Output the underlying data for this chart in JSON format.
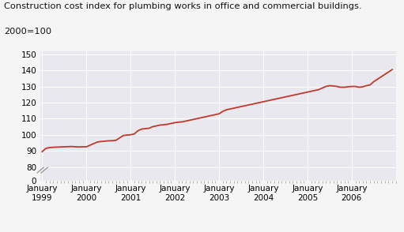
{
  "title_line1": "Construction cost index for plumbing works in office and commercial buildings.",
  "title_line2": "2000=100",
  "line_color": "#c0392b",
  "line_width": 1.3,
  "background_color": "#f5f5f5",
  "plot_bg_color": "#e8e8ee",
  "grid_color": "#ffffff",
  "yticks_main": [
    80,
    90,
    100,
    110,
    120,
    130,
    140,
    150
  ],
  "ytick_bottom": 0,
  "x_tick_labels": [
    "January\n1999",
    "January\n2000",
    "January\n2001",
    "January\n2002",
    "January\n2003",
    "January\n2004",
    "January\n2005",
    "January\n2006"
  ],
  "x_tick_positions": [
    1999,
    2000,
    2001,
    2002,
    2003,
    2004,
    2005,
    2006
  ],
  "data_points": [
    [
      1999,
      1,
      89.5
    ],
    [
      1999,
      2,
      91.5
    ],
    [
      1999,
      3,
      92.0
    ],
    [
      1999,
      4,
      92.2
    ],
    [
      1999,
      5,
      92.3
    ],
    [
      1999,
      6,
      92.4
    ],
    [
      1999,
      7,
      92.5
    ],
    [
      1999,
      8,
      92.6
    ],
    [
      1999,
      9,
      92.7
    ],
    [
      1999,
      10,
      92.5
    ],
    [
      1999,
      11,
      92.4
    ],
    [
      1999,
      12,
      92.5
    ],
    [
      2000,
      1,
      92.5
    ],
    [
      2000,
      2,
      93.5
    ],
    [
      2000,
      3,
      94.5
    ],
    [
      2000,
      4,
      95.5
    ],
    [
      2000,
      5,
      95.8
    ],
    [
      2000,
      6,
      96.0
    ],
    [
      2000,
      7,
      96.2
    ],
    [
      2000,
      8,
      96.3
    ],
    [
      2000,
      9,
      96.5
    ],
    [
      2000,
      10,
      98.0
    ],
    [
      2000,
      11,
      99.5
    ],
    [
      2000,
      12,
      99.8
    ],
    [
      2001,
      1,
      100.0
    ],
    [
      2001,
      2,
      100.5
    ],
    [
      2001,
      3,
      102.5
    ],
    [
      2001,
      4,
      103.5
    ],
    [
      2001,
      5,
      103.8
    ],
    [
      2001,
      6,
      104.0
    ],
    [
      2001,
      7,
      105.0
    ],
    [
      2001,
      8,
      105.5
    ],
    [
      2001,
      9,
      106.0
    ],
    [
      2001,
      10,
      106.2
    ],
    [
      2001,
      11,
      106.5
    ],
    [
      2001,
      12,
      107.0
    ],
    [
      2002,
      1,
      107.5
    ],
    [
      2002,
      2,
      107.8
    ],
    [
      2002,
      3,
      108.0
    ],
    [
      2002,
      4,
      108.5
    ],
    [
      2002,
      5,
      109.0
    ],
    [
      2002,
      6,
      109.5
    ],
    [
      2002,
      7,
      110.0
    ],
    [
      2002,
      8,
      110.5
    ],
    [
      2002,
      9,
      111.0
    ],
    [
      2002,
      10,
      111.5
    ],
    [
      2002,
      11,
      112.0
    ],
    [
      2002,
      12,
      112.5
    ],
    [
      2003,
      1,
      113.0
    ],
    [
      2003,
      2,
      114.5
    ],
    [
      2003,
      3,
      115.5
    ],
    [
      2003,
      4,
      116.0
    ],
    [
      2003,
      5,
      116.5
    ],
    [
      2003,
      6,
      117.0
    ],
    [
      2003,
      7,
      117.5
    ],
    [
      2003,
      8,
      118.0
    ],
    [
      2003,
      9,
      118.5
    ],
    [
      2003,
      10,
      119.0
    ],
    [
      2003,
      11,
      119.5
    ],
    [
      2003,
      12,
      120.0
    ],
    [
      2004,
      1,
      120.5
    ],
    [
      2004,
      2,
      121.0
    ],
    [
      2004,
      3,
      121.5
    ],
    [
      2004,
      4,
      122.0
    ],
    [
      2004,
      5,
      122.5
    ],
    [
      2004,
      6,
      123.0
    ],
    [
      2004,
      7,
      123.5
    ],
    [
      2004,
      8,
      124.0
    ],
    [
      2004,
      9,
      124.5
    ],
    [
      2004,
      10,
      125.0
    ],
    [
      2004,
      11,
      125.5
    ],
    [
      2004,
      12,
      126.0
    ],
    [
      2005,
      1,
      126.5
    ],
    [
      2005,
      2,
      127.0
    ],
    [
      2005,
      3,
      127.5
    ],
    [
      2005,
      4,
      128.0
    ],
    [
      2005,
      5,
      129.0
    ],
    [
      2005,
      6,
      130.0
    ],
    [
      2005,
      7,
      130.5
    ],
    [
      2005,
      8,
      130.3
    ],
    [
      2005,
      9,
      130.0
    ],
    [
      2005,
      10,
      129.5
    ],
    [
      2005,
      11,
      129.5
    ],
    [
      2005,
      12,
      129.8
    ],
    [
      2006,
      1,
      130.0
    ],
    [
      2006,
      2,
      130.0
    ],
    [
      2006,
      3,
      129.5
    ],
    [
      2006,
      4,
      129.8
    ],
    [
      2006,
      5,
      130.5
    ],
    [
      2006,
      6,
      131.0
    ],
    [
      2006,
      7,
      133.0
    ],
    [
      2006,
      8,
      134.5
    ],
    [
      2006,
      9,
      136.0
    ],
    [
      2006,
      10,
      137.5
    ],
    [
      2006,
      11,
      139.0
    ],
    [
      2006,
      12,
      140.5
    ]
  ]
}
